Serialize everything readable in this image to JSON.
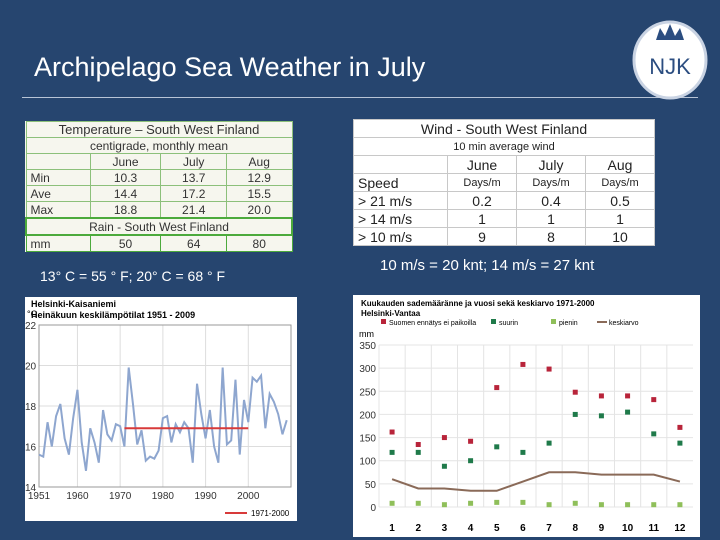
{
  "header": {
    "title": "Archipelago Sea Weather in July",
    "logo": "NJK"
  },
  "temp_table": {
    "title": "Temperature – South West Finland",
    "subtitle": "centigrade, monthly mean",
    "columns": [
      "June",
      "July",
      "Aug"
    ],
    "rows": [
      [
        "Min",
        "10.3",
        "13.7",
        "12.9"
      ],
      [
        "Ave",
        "14.4",
        "17.2",
        "15.5"
      ],
      [
        "Max",
        "18.8",
        "21.4",
        "20.0"
      ]
    ],
    "rain_title": "Rain - South West Finland",
    "rain_row": [
      "mm",
      "50",
      "64",
      "80"
    ]
  },
  "temp_note": "13° C = 55 ° F; 20° C = 68 ° F",
  "wind_table": {
    "title": "Wind - South West Finland",
    "subtitle": "10 min average wind",
    "columns": [
      "June",
      "July",
      "Aug"
    ],
    "units": [
      "Speed",
      "Days/m",
      "Days/m",
      "Days/m"
    ],
    "rows": [
      [
        "> 21 m/s",
        "0.2",
        "0.4",
        "0.5"
      ],
      [
        "> 14 m/s",
        "1",
        "1",
        "1"
      ],
      [
        "> 10 m/s",
        "9",
        "8",
        "10"
      ]
    ]
  },
  "wind_note": "10 m/s = 20 knt; 14 m/s = 27 knt",
  "chart_data": [
    {
      "type": "line",
      "title": "Helsinki-Kaisaniemi",
      "subtitle": "Heinäkuun keskilämpötilat 1951 - 2009",
      "y_label": "°C",
      "color": "#8ea6cf",
      "x": [
        1951,
        1952,
        1953,
        1954,
        1955,
        1956,
        1957,
        1958,
        1959,
        1960,
        1961,
        1962,
        1963,
        1964,
        1965,
        1966,
        1967,
        1968,
        1969,
        1970,
        1971,
        1972,
        1973,
        1974,
        1975,
        1976,
        1977,
        1978,
        1979,
        1980,
        1981,
        1982,
        1983,
        1984,
        1985,
        1986,
        1987,
        1988,
        1989,
        1990,
        1991,
        1992,
        1993,
        1994,
        1995,
        1996,
        1997,
        1998,
        1999,
        2000,
        2001,
        2002,
        2003,
        2004,
        2005,
        2006,
        2007,
        2008,
        2009
      ],
      "values": [
        15.6,
        15.5,
        17.2,
        16.0,
        17.5,
        18.1,
        16.4,
        15.6,
        17.4,
        18.8,
        16.2,
        14.8,
        16.9,
        16.2,
        15.2,
        17.8,
        16.6,
        16.3,
        17.1,
        17.0,
        16.0,
        19.9,
        18.1,
        16.1,
        16.8,
        15.3,
        15.5,
        15.4,
        15.8,
        17.4,
        17.5,
        16.2,
        17.1,
        16.7,
        17.2,
        16.9,
        15.2,
        19.1,
        17.6,
        16.4,
        17.8,
        16.0,
        15.2,
        19.9,
        16.1,
        16.3,
        19.3,
        15.6,
        18.3,
        17.2,
        19.4,
        19.2,
        19.5,
        16.9,
        18.6,
        18.2,
        17.6,
        16.6,
        17.3
      ],
      "reference": {
        "label": "1971-2000",
        "x": [
          1971,
          2000
        ],
        "value": 16.9,
        "color": "#d83a3a"
      },
      "xlim": [
        1951,
        2010
      ],
      "xticks": [
        1951,
        1960,
        1970,
        1980,
        1990,
        2000
      ],
      "ylim": [
        14,
        22
      ],
      "yticks": [
        14,
        16,
        18,
        20,
        22
      ],
      "grid": true
    },
    {
      "type": "scatter",
      "title": "Kuukauden sademääränne ja vuosi sekä keskiarvo 1971-2000",
      "subtitle": "Helsinki-Vantaa",
      "y_label": "mm",
      "categories": [
        1,
        2,
        3,
        4,
        5,
        6,
        7,
        8,
        9,
        10,
        11,
        12
      ],
      "series": [
        {
          "name": "Suomen ennätys ei paikoilla",
          "color": "#b8243a",
          "values": [
            162,
            135,
            150,
            142,
            258,
            308,
            298,
            248,
            240,
            240,
            232,
            172
          ]
        },
        {
          "name": "suurin",
          "color": "#1f7a4a",
          "values": [
            118,
            118,
            88,
            100,
            130,
            118,
            138,
            200,
            197,
            205,
            158,
            138
          ]
        },
        {
          "name": "pienin",
          "color": "#8fbf5a",
          "values": [
            8,
            8,
            5,
            8,
            10,
            10,
            5,
            8,
            5,
            5,
            5,
            5
          ]
        },
        {
          "name": "keskiarvo",
          "color": "#8a6a58",
          "line": true,
          "values": [
            60,
            40,
            40,
            35,
            35,
            55,
            75,
            75,
            70,
            70,
            70,
            55
          ]
        }
      ],
      "ylim": [
        0,
        350
      ],
      "yticks": [
        0,
        50,
        100,
        150,
        200,
        250,
        300,
        350
      ],
      "grid": true
    }
  ]
}
